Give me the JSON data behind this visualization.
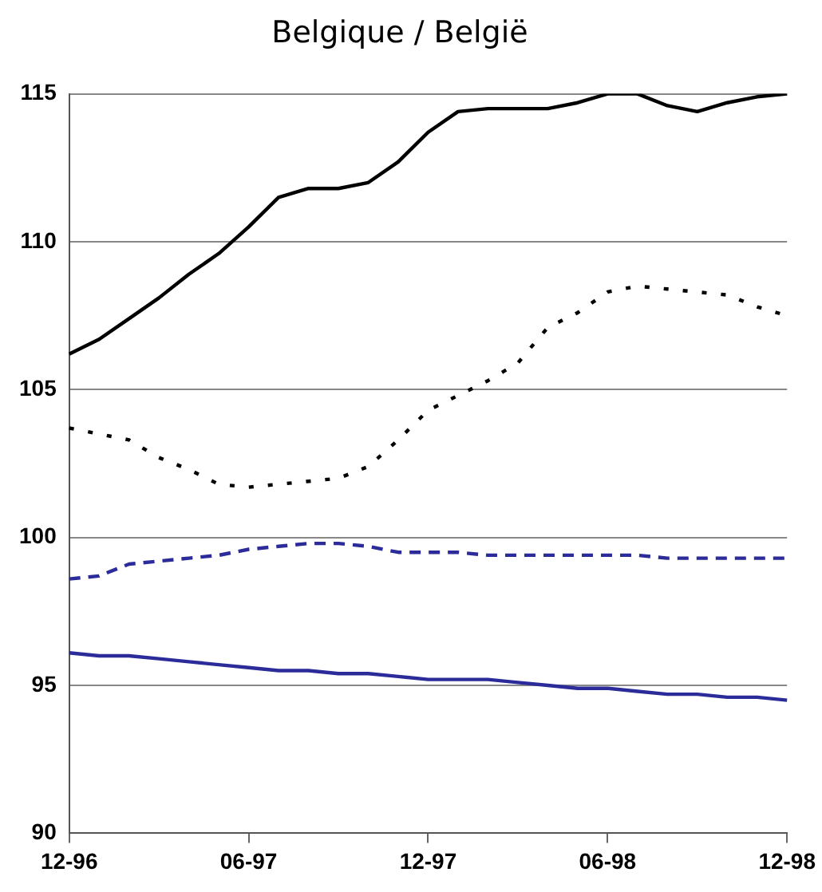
{
  "chart_data": {
    "type": "line",
    "title": "Belgique / België",
    "categories": [
      "12-96",
      null,
      null,
      null,
      null,
      null,
      "06-97",
      null,
      null,
      null,
      null,
      null,
      "12-97",
      null,
      null,
      null,
      null,
      null,
      "06-98",
      null,
      null,
      null,
      null,
      null,
      "12-98"
    ],
    "series": [
      {
        "color": "#000000",
        "line_style": "solid",
        "values": [
          106.2,
          106.7,
          107.4,
          108.1,
          108.9,
          109.6,
          110.5,
          111.5,
          111.8,
          111.8,
          112.0,
          112.7,
          113.7,
          114.4,
          114.5,
          114.5,
          114.5,
          114.7,
          115.0,
          115.0,
          114.6,
          114.4,
          114.7,
          114.9,
          115.0
        ]
      },
      {
        "color": "#000000",
        "line_style": "dotted",
        "values": [
          103.7,
          103.5,
          103.3,
          102.7,
          102.3,
          101.8,
          101.7,
          101.8,
          101.9,
          102.0,
          102.4,
          103.3,
          104.3,
          104.8,
          105.3,
          105.9,
          107.1,
          107.6,
          108.3,
          108.5,
          108.4,
          108.3,
          108.2,
          107.8,
          107.5
        ]
      },
      {
        "color": "#2b2b9a",
        "line_style": "dashed",
        "values": [
          98.6,
          98.7,
          99.1,
          99.2,
          99.3,
          99.4,
          99.6,
          99.7,
          99.8,
          99.8,
          99.7,
          99.5,
          99.5,
          99.5,
          99.4,
          99.4,
          99.4,
          99.4,
          99.4,
          99.4,
          99.3,
          99.3,
          99.3,
          99.3,
          99.3
        ]
      },
      {
        "color": "#2b2b9a",
        "line_style": "solid",
        "values": [
          96.1,
          96.0,
          96.0,
          95.9,
          95.8,
          95.7,
          95.6,
          95.5,
          95.5,
          95.4,
          95.4,
          95.3,
          95.2,
          95.2,
          95.2,
          95.1,
          95.0,
          94.9,
          94.9,
          94.8,
          94.7,
          94.7,
          94.6,
          94.6,
          94.5
        ]
      }
    ],
    "ylim": [
      90,
      115
    ],
    "yticks": [
      90,
      95,
      100,
      105,
      110,
      115
    ],
    "grid": "y",
    "legend": false,
    "marker": "none"
  }
}
